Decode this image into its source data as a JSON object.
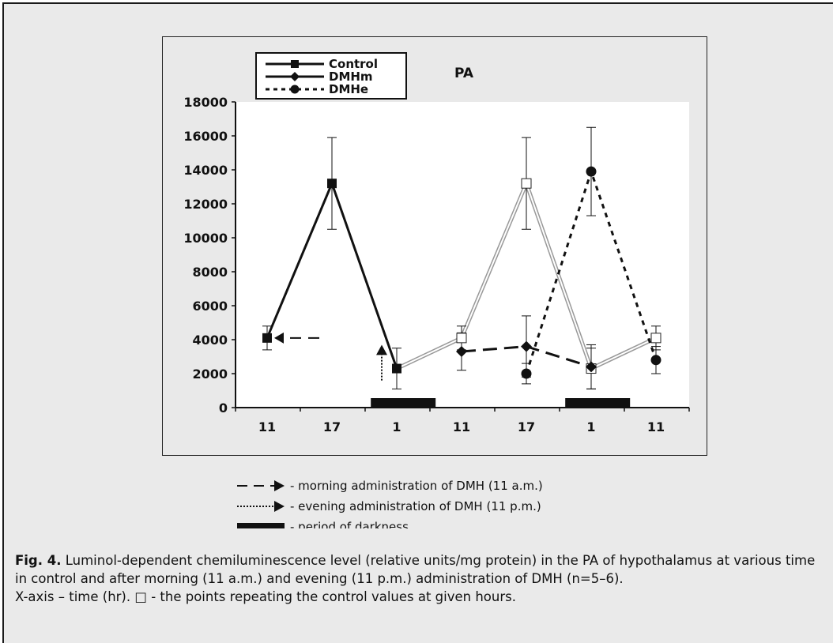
{
  "chart_data": {
    "type": "line",
    "title": "PA",
    "xlabel": "",
    "ylabel": "",
    "categories": [
      "11",
      "17",
      "1",
      "11",
      "17",
      "1",
      "11"
    ],
    "ylim": [
      0,
      18000
    ],
    "yticks": [
      "0",
      "2000",
      "4000",
      "6000",
      "8000",
      "10000",
      "12000",
      "14000",
      "16000",
      "18000"
    ],
    "grid": false,
    "legend_position": "top-left",
    "legend": [
      "Control",
      "DMHm",
      "DMHe"
    ],
    "series": [
      {
        "name": "Control",
        "marker": "filled-square",
        "points": [
          {
            "x": "11",
            "y": 4100,
            "err": 700
          },
          {
            "x": "17",
            "y": 13200,
            "err": 2700
          },
          {
            "x": "1",
            "y": 2300,
            "err": 1200
          }
        ]
      },
      {
        "name": "Control (repeated values)",
        "marker": "open-square",
        "points": [
          {
            "x": "1",
            "y": 2300
          },
          {
            "x": "11",
            "y": 4100,
            "err": 700
          },
          {
            "x": "17",
            "y": 13200,
            "err": 2700
          },
          {
            "x": "1",
            "y": 2300,
            "err": 1200
          },
          {
            "x": "11",
            "y": 4100,
            "err": 700
          }
        ]
      },
      {
        "name": "DMHm",
        "marker": "filled-diamond",
        "points": [
          {
            "x": "11",
            "y": 3300,
            "err": 1100
          },
          {
            "x": "17",
            "y": 3600,
            "err": 1800
          },
          {
            "x": "1",
            "y": 2400,
            "err": 1300
          }
        ]
      },
      {
        "name": "DMHe",
        "marker": "filled-circle",
        "points": [
          {
            "x": "17",
            "y": 2000,
            "err": 600
          },
          {
            "x": "1",
            "y": 13900,
            "err": 2600
          },
          {
            "x": "11",
            "y": 2800,
            "err": 800
          }
        ]
      }
    ],
    "dark_periods": [
      {
        "from_index": 1.6,
        "to_index": 2.6
      },
      {
        "from_index": 4.6,
        "to_index": 5.6
      }
    ]
  },
  "notes": [
    {
      "text": "- morning administration of DMH (11 a.m.)",
      "line_style": "dashed"
    },
    {
      "text": "- evening administration of DMH (11 p.m.)",
      "line_style": "dotted"
    },
    {
      "text": "- period of darkness",
      "line_style": "solid-bar"
    }
  ],
  "caption": {
    "label": "Fig. 4.",
    "text": " Luminol-dependent chemiluminescence level (relative units/mg protein) in the PA of hypothalamus at various time in control and after morning (11 a.m.) and evening (11 p.m.) administration of DMH (n=5–6).",
    "line2": "X-axis – time (hr). □ - the points repeating the control values at given hours."
  }
}
